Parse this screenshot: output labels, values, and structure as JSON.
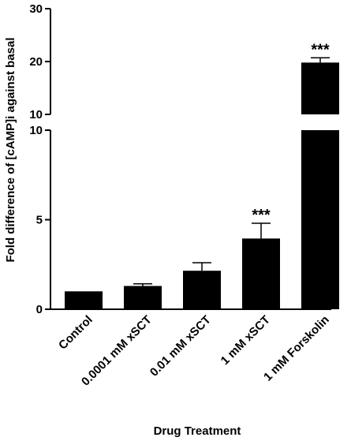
{
  "chart_data": {
    "type": "bar",
    "xlabel": "Drug Treatment",
    "ylabel": "Fold difference of [cAMP]i against basal",
    "categories": [
      "Control",
      "0.0001 mM xSCT",
      "0.01 mM xSCT",
      "1 mM xSCT",
      "1 mM Forskolin"
    ],
    "values": [
      1.0,
      1.3,
      2.15,
      3.95,
      19.8
    ],
    "errors": [
      0.0,
      0.12,
      0.45,
      0.85,
      0.9
    ],
    "significance": [
      "",
      "",
      "",
      "***",
      "***"
    ],
    "y_axis_lower": {
      "ylim": [
        0,
        10
      ],
      "ticks": [
        "0",
        "5",
        "10"
      ]
    },
    "y_axis_upper": {
      "ylim": [
        10,
        30
      ],
      "ticks": [
        "10",
        "20",
        "30"
      ]
    },
    "broken_axis": true,
    "bar_color": "#000000",
    "grid": false,
    "legend": "none"
  }
}
